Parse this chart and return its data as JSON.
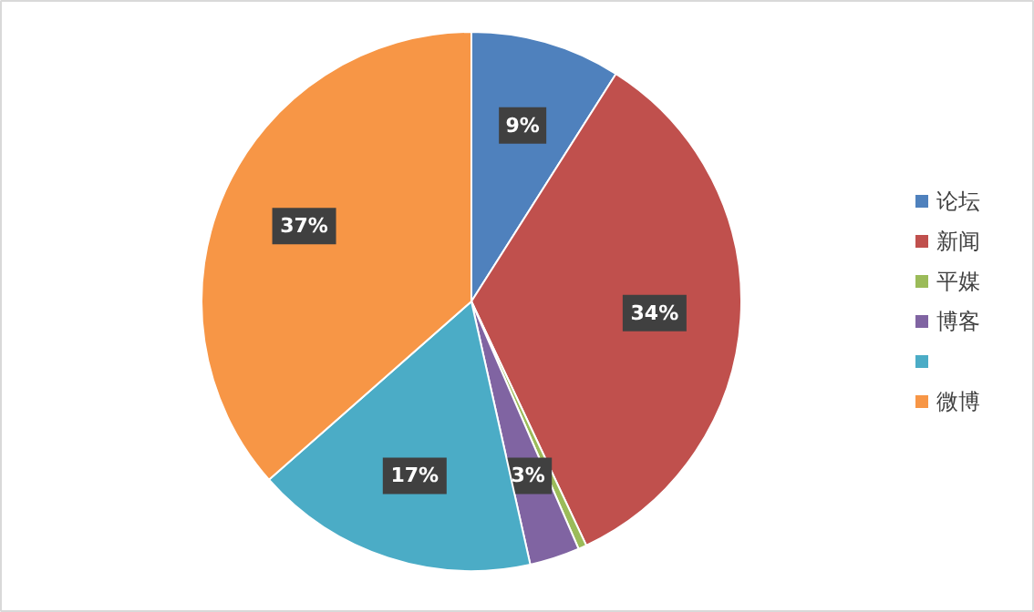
{
  "chart_data": {
    "type": "pie",
    "categories": [
      "论坛",
      "新闻",
      "平媒",
      "博客",
      null,
      "微博"
    ],
    "values": [
      9,
      34,
      0.5,
      3,
      17,
      36.5
    ],
    "value_labels": [
      "9%",
      "34%",
      null,
      "3%",
      "17%",
      "37%"
    ],
    "colors": [
      "#4f81bd",
      "#c0504d",
      "#9bbb59",
      "#8064a2",
      "#4bacc6",
      "#f79646"
    ],
    "legend": "right"
  }
}
